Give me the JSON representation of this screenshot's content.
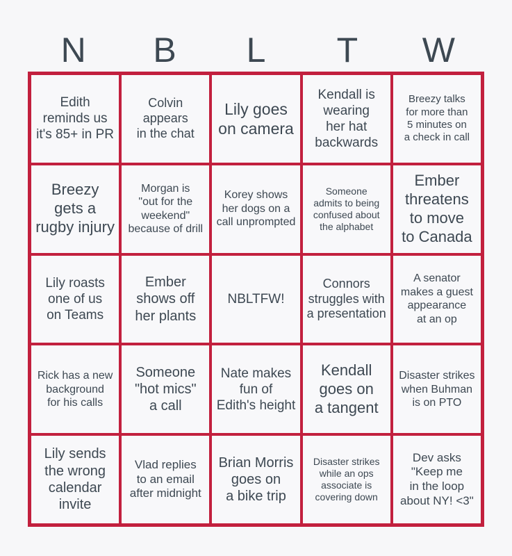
{
  "page": {
    "background_color": "#f7f7f9"
  },
  "colors": {
    "grid_border": "#c2203e",
    "text": "#3d4852",
    "cell_background": "#f8f8fa"
  },
  "header": {
    "letters": [
      "N",
      "B",
      "L",
      "T",
      "W"
    ]
  },
  "card": {
    "rows": [
      {
        "cells": [
          {
            "text": "Edith reminds us it's 85+ in PR",
            "font": "19px"
          },
          {
            "text": "Colvin appears in the chat",
            "font": "18px"
          },
          {
            "text": "Lily goes on camera",
            "font": "23px"
          },
          {
            "text": "Kendall is wearing her hat backwards",
            "font": "19px"
          },
          {
            "text": "Breezy talks for more than 5 minutes on a check in call",
            "font": "15px"
          }
        ]
      },
      {
        "cells": [
          {
            "text": "Breezy gets a rugby injury",
            "font": "22px"
          },
          {
            "text": "Morgan is \"out for the weekend\" because of drill",
            "font": "16px"
          },
          {
            "text": "Korey shows her dogs on a call unprompted",
            "font": "16px"
          },
          {
            "text": "Someone admits to being confused about the alphabet",
            "font": "14px"
          },
          {
            "text": "Ember threatens to move to Canada",
            "font": "22px"
          }
        ]
      },
      {
        "cells": [
          {
            "text": "Lily roasts one of us on Teams",
            "font": "19px"
          },
          {
            "text": "Ember shows off her plants",
            "font": "20px"
          },
          {
            "text": "NBLTFW!",
            "font": "19px"
          },
          {
            "text": "Connors struggles with a presentation",
            "font": "18px"
          },
          {
            "text": "A senator makes a guest appearance at an op",
            "font": "16px"
          }
        ]
      },
      {
        "cells": [
          {
            "text": "Rick has a new background for his calls",
            "font": "16px"
          },
          {
            "text": "Someone \"hot mics\" a call",
            "font": "20px"
          },
          {
            "text": "Nate makes fun of Edith's height",
            "font": "19px"
          },
          {
            "text": "Kendall goes on a tangent",
            "font": "22px"
          },
          {
            "text": "Disaster strikes when Buhman is on PTO",
            "font": "16px"
          }
        ]
      },
      {
        "cells": [
          {
            "text": "Lily sends the wrong calendar invite",
            "font": "20px"
          },
          {
            "text": "Vlad replies to an email after midnight",
            "font": "17px"
          },
          {
            "text": "Brian Morris goes on a bike trip",
            "font": "20px"
          },
          {
            "text": "Disaster strikes while an ops associate is covering down",
            "font": "14px"
          },
          {
            "text": "Dev asks \"Keep me in the loop about NY! <3\"",
            "font": "17px"
          }
        ]
      }
    ]
  }
}
